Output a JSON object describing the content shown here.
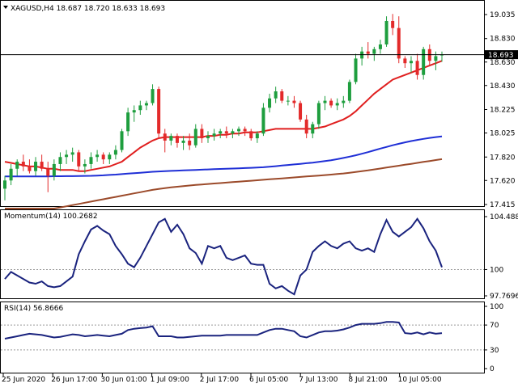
{
  "main": {
    "symbol_line": "XAGUSD,H4  18.687 18.720 18.633 18.693",
    "current_price_tag": "18.693",
    "price_axis": [
      "19.035",
      "18.830",
      "18.630",
      "18.430",
      "18.225",
      "18.025",
      "17.820",
      "17.620",
      "17.415"
    ],
    "colors": {
      "bull": "#1e9e3e",
      "bear": "#e32a2a",
      "ma_fast": "#e01f1f",
      "ma_mid": "#1f2fd6",
      "ma_slow": "#9b4a2a",
      "indicator": "#1a237e"
    }
  },
  "momentum": {
    "title": "Momentum(14) 100.2682",
    "axis": [
      "104.4886",
      "100",
      "97.7696"
    ]
  },
  "rsi": {
    "title": "RSI(14) 56.8666",
    "axis": [
      "100",
      "70",
      "30",
      "0"
    ]
  },
  "time_axis": [
    "25 Jun 2020",
    "26 Jun 17:00",
    "30 Jun 01:00",
    "1 Jul 09:00",
    "2 Jul 17:00",
    "6 Jul 05:00",
    "7 Jul 13:00",
    "8 Jul 21:00",
    "10 Jul 05:00"
  ],
  "chart_data": {
    "type": "candlestick",
    "symbol": "XAGUSD",
    "timeframe": "H4",
    "ylim": [
      17.415,
      19.035
    ],
    "current": {
      "open": 18.687,
      "high": 18.72,
      "low": 18.633,
      "close": 18.693
    },
    "ohlc": [
      [
        17.55,
        17.66,
        17.45,
        17.62
      ],
      [
        17.62,
        17.76,
        17.58,
        17.72
      ],
      [
        17.72,
        17.8,
        17.66,
        17.78
      ],
      [
        17.78,
        17.84,
        17.7,
        17.74
      ],
      [
        17.74,
        17.8,
        17.68,
        17.7
      ],
      [
        17.7,
        17.82,
        17.66,
        17.78
      ],
      [
        17.78,
        17.84,
        17.7,
        17.72
      ],
      [
        17.72,
        17.78,
        17.52,
        17.66
      ],
      [
        17.66,
        17.8,
        17.62,
        17.76
      ],
      [
        17.76,
        17.86,
        17.7,
        17.82
      ],
      [
        17.82,
        17.88,
        17.76,
        17.84
      ],
      [
        17.84,
        17.9,
        17.78,
        17.86
      ],
      [
        17.86,
        17.88,
        17.7,
        17.74
      ],
      [
        17.74,
        17.8,
        17.68,
        17.76
      ],
      [
        17.76,
        17.86,
        17.72,
        17.82
      ],
      [
        17.82,
        17.88,
        17.78,
        17.84
      ],
      [
        17.84,
        17.86,
        17.76,
        17.8
      ],
      [
        17.8,
        17.86,
        17.76,
        17.84
      ],
      [
        17.84,
        17.92,
        17.8,
        17.88
      ],
      [
        17.88,
        18.06,
        17.86,
        18.04
      ],
      [
        18.04,
        18.24,
        18.0,
        18.2
      ],
      [
        18.2,
        18.26,
        18.12,
        18.22
      ],
      [
        18.22,
        18.3,
        18.18,
        18.26
      ],
      [
        18.26,
        18.3,
        18.22,
        18.28
      ],
      [
        18.28,
        18.44,
        18.26,
        18.4
      ],
      [
        18.4,
        18.42,
        17.98,
        18.02
      ],
      [
        18.02,
        18.06,
        17.86,
        17.96
      ],
      [
        17.96,
        18.02,
        17.92,
        18.0
      ],
      [
        18.0,
        18.02,
        17.9,
        17.94
      ],
      [
        17.94,
        18.0,
        17.88,
        17.96
      ],
      [
        17.96,
        18.02,
        17.88,
        17.92
      ],
      [
        17.92,
        18.1,
        17.9,
        18.06
      ],
      [
        18.06,
        18.1,
        17.94,
        17.98
      ],
      [
        17.98,
        18.04,
        17.94,
        18.0
      ],
      [
        18.0,
        18.06,
        17.96,
        18.02
      ],
      [
        18.02,
        18.06,
        17.98,
        18.04
      ],
      [
        18.04,
        18.08,
        17.98,
        18.02
      ],
      [
        18.02,
        18.06,
        17.98,
        18.04
      ],
      [
        18.04,
        18.08,
        18.0,
        18.06
      ],
      [
        18.06,
        18.08,
        18.0,
        18.04
      ],
      [
        18.04,
        18.06,
        17.96,
        17.98
      ],
      [
        17.98,
        18.04,
        17.94,
        18.02
      ],
      [
        18.02,
        18.28,
        18.0,
        18.24
      ],
      [
        18.24,
        18.36,
        18.2,
        18.32
      ],
      [
        18.32,
        18.42,
        18.28,
        18.38
      ],
      [
        18.38,
        18.4,
        18.28,
        18.3
      ],
      [
        18.3,
        18.34,
        18.26,
        18.3
      ],
      [
        18.3,
        18.34,
        18.24,
        18.28
      ],
      [
        18.28,
        18.3,
        18.12,
        18.14
      ],
      [
        18.14,
        18.18,
        17.98,
        18.02
      ],
      [
        18.02,
        18.12,
        17.98,
        18.1
      ],
      [
        18.1,
        18.3,
        18.06,
        18.28
      ],
      [
        18.28,
        18.34,
        18.22,
        18.3
      ],
      [
        18.3,
        18.32,
        18.24,
        18.26
      ],
      [
        18.26,
        18.32,
        18.22,
        18.28
      ],
      [
        18.28,
        18.34,
        18.24,
        18.3
      ],
      [
        18.3,
        18.48,
        18.28,
        18.46
      ],
      [
        18.46,
        18.7,
        18.44,
        18.66
      ],
      [
        18.66,
        18.76,
        18.6,
        18.72
      ],
      [
        18.72,
        18.8,
        18.66,
        18.7
      ],
      [
        18.7,
        18.76,
        18.64,
        18.74
      ],
      [
        18.74,
        18.82,
        18.7,
        18.78
      ],
      [
        18.78,
        19.02,
        18.76,
        18.98
      ],
      [
        18.98,
        19.04,
        18.86,
        18.92
      ],
      [
        18.92,
        19.02,
        18.62,
        18.66
      ],
      [
        18.66,
        18.68,
        18.58,
        18.62
      ],
      [
        18.62,
        18.68,
        18.54,
        18.64
      ],
      [
        18.64,
        18.7,
        18.48,
        18.52
      ],
      [
        18.52,
        18.76,
        18.48,
        18.74
      ],
      [
        18.74,
        18.78,
        18.6,
        18.64
      ],
      [
        18.64,
        18.72,
        18.56,
        18.68
      ],
      [
        18.687,
        18.72,
        18.633,
        18.693
      ]
    ],
    "ma": [
      {
        "values": [
          17.78,
          17.77,
          17.76,
          17.75,
          17.74,
          17.74,
          17.73,
          17.72,
          17.72,
          17.71,
          17.71,
          17.71,
          17.7,
          17.7,
          17.71,
          17.72,
          17.73,
          17.74,
          17.76,
          17.78,
          17.82,
          17.86,
          17.9,
          17.93,
          17.96,
          17.98,
          17.99,
          17.99,
          17.99,
          17.99,
          17.99,
          17.99,
          17.99,
          18.0,
          18.0,
          18.01,
          18.01,
          18.02,
          18.02,
          18.03,
          18.03,
          18.03,
          18.04,
          18.05,
          18.06,
          18.06,
          18.06,
          18.06,
          18.06,
          18.06,
          18.06,
          18.07,
          18.08,
          18.1,
          18.12,
          18.14,
          18.17,
          18.21,
          18.26,
          18.31,
          18.36,
          18.4,
          18.44,
          18.48,
          18.5,
          18.52,
          18.54,
          18.56,
          18.58,
          18.6,
          18.62,
          18.64
        ]
      },
      {
        "values": [
          17.655,
          17.655,
          17.655,
          17.655,
          17.655,
          17.655,
          17.655,
          17.655,
          17.656,
          17.656,
          17.657,
          17.657,
          17.658,
          17.659,
          17.66,
          17.662,
          17.664,
          17.667,
          17.67,
          17.674,
          17.678,
          17.682,
          17.686,
          17.69,
          17.694,
          17.697,
          17.7,
          17.702,
          17.704,
          17.706,
          17.708,
          17.71,
          17.712,
          17.714,
          17.716,
          17.718,
          17.72,
          17.722,
          17.724,
          17.726,
          17.728,
          17.73,
          17.733,
          17.737,
          17.742,
          17.747,
          17.752,
          17.757,
          17.762,
          17.767,
          17.772,
          17.778,
          17.785,
          17.793,
          17.802,
          17.812,
          17.823,
          17.835,
          17.848,
          17.862,
          17.877,
          17.892,
          17.906,
          17.92,
          17.933,
          17.945,
          17.956,
          17.966,
          17.975,
          17.983,
          17.99,
          17.996
        ]
      },
      {
        "values": [
          17.3,
          17.31,
          17.32,
          17.33,
          17.34,
          17.35,
          17.36,
          17.37,
          17.38,
          17.39,
          17.4,
          17.41,
          17.42,
          17.43,
          17.44,
          17.45,
          17.46,
          17.47,
          17.48,
          17.49,
          17.5,
          17.51,
          17.52,
          17.53,
          17.54,
          17.548,
          17.555,
          17.561,
          17.567,
          17.572,
          17.577,
          17.582,
          17.586,
          17.59,
          17.594,
          17.598,
          17.602,
          17.606,
          17.61,
          17.614,
          17.618,
          17.622,
          17.626,
          17.63,
          17.634,
          17.638,
          17.642,
          17.646,
          17.65,
          17.654,
          17.658,
          17.662,
          17.666,
          17.67,
          17.675,
          17.68,
          17.686,
          17.692,
          17.699,
          17.706,
          17.714,
          17.722,
          17.73,
          17.738,
          17.746,
          17.754,
          17.762,
          17.77,
          17.778,
          17.786,
          17.794,
          17.802
        ]
      }
    ],
    "momentum": {
      "ylim": [
        97.7696,
        104.4886
      ],
      "values": [
        99.2,
        99.8,
        99.5,
        99.2,
        98.9,
        98.8,
        99.0,
        98.6,
        98.5,
        98.6,
        99.0,
        99.4,
        101.3,
        102.4,
        103.4,
        103.7,
        103.3,
        103.0,
        102.0,
        101.3,
        100.5,
        100.2,
        101.0,
        102.0,
        103.0,
        104.0,
        104.3,
        103.2,
        103.8,
        103.0,
        101.8,
        101.4,
        100.5,
        102.0,
        101.8,
        102.0,
        101.0,
        100.8,
        101.0,
        101.2,
        100.5,
        100.4,
        100.4,
        98.8,
        98.4,
        98.6,
        98.2,
        97.9,
        99.5,
        100.0,
        101.5,
        102.0,
        102.4,
        102.0,
        101.8,
        102.2,
        102.4,
        101.8,
        101.6,
        101.8,
        101.5,
        103.0,
        104.2,
        103.2,
        102.8,
        103.2,
        103.6,
        104.3,
        103.5,
        102.4,
        101.6,
        100.2
      ]
    },
    "rsi": {
      "ylim": [
        0,
        100
      ],
      "levels": [
        70,
        30
      ],
      "values": [
        48,
        50,
        52,
        54,
        56,
        55,
        54,
        52,
        50,
        51,
        53,
        55,
        54,
        52,
        53,
        54,
        53,
        52,
        54,
        56,
        62,
        64,
        65,
        66,
        68,
        52,
        52,
        52,
        50,
        50,
        51,
        52,
        53,
        53,
        53,
        53,
        54,
        54,
        54,
        54,
        54,
        54,
        58,
        62,
        64,
        64,
        62,
        60,
        52,
        50,
        54,
        58,
        60,
        60,
        61,
        63,
        66,
        70,
        72,
        72,
        72,
        73,
        75,
        75,
        74,
        57,
        56,
        58,
        55,
        58,
        56,
        57
      ]
    }
  }
}
